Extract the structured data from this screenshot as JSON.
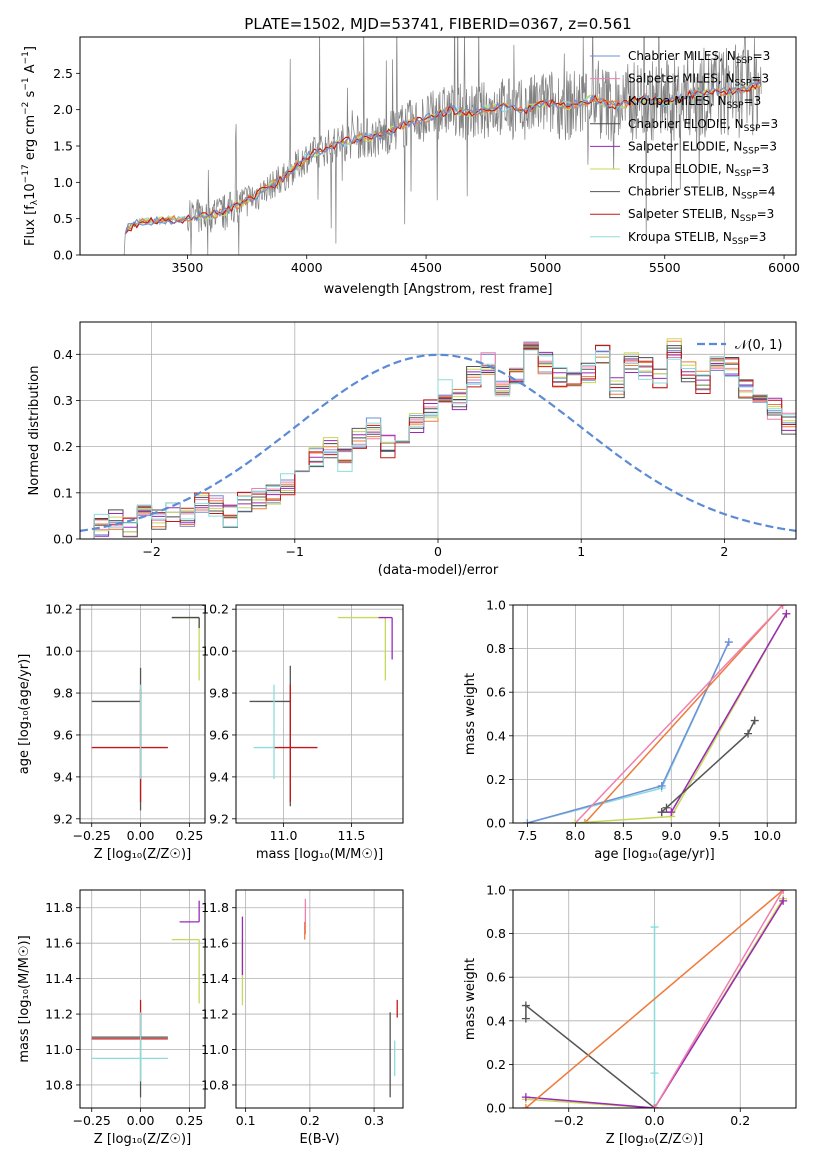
{
  "figure_title": "PLATE=1502, MJD=53741, FIBERID=0367, z=0.561",
  "colors": {
    "chabrier_miles": "#6f8fd8",
    "salpeter_miles": "#f07fb0",
    "kroupa_miles": "#ee7a3c",
    "chabrier_elodie": "#4a4a4a",
    "salpeter_elodie": "#9a28b8",
    "kroupa_elodie": "#c8d85a",
    "chabrier_stelib": "#555555",
    "salpeter_stelib": "#c41818",
    "kroupa_stelib": "#8ddcdc",
    "spectrum": "#808080",
    "normal_curve": "#5b8bd6",
    "grid": "#b0b0b0"
  },
  "chart_data": [
    {
      "id": "spectrum",
      "type": "line",
      "xlabel": "wavelength [Angstrom, rest frame]",
      "ylabel": "Flux [f_λ10^-17 erg cm^-2 s^-1 A^-1]",
      "ylabel_parts": {
        "a": "Flux [f",
        "sub": "λ",
        "b": "10",
        "sup1": "−17",
        "c": " erg cm",
        "sup2": "−2",
        "d": " s",
        "sup3": "−1",
        "e": " A",
        "sup4": "−1",
        "f": "]"
      },
      "xlim": [
        3050,
        6050
      ],
      "ylim": [
        0,
        3.0
      ],
      "xticks": [
        3500,
        4000,
        4500,
        5000,
        5500,
        6000
      ],
      "yticks": [
        0.0,
        0.5,
        1.0,
        1.5,
        2.0,
        2.5
      ],
      "grid": false,
      "legend_position": "top-right",
      "legend": [
        {
          "label": "Chabrier MILES, N",
          "sub": "SSP",
          "eq": "=3",
          "color_key": "chabrier_miles"
        },
        {
          "label": "Salpeter MILES, N",
          "sub": "SSP",
          "eq": "=3",
          "color_key": "salpeter_miles"
        },
        {
          "label": "Kroupa MILES, N",
          "sub": "SSP",
          "eq": "=3",
          "color_key": "kroupa_miles"
        },
        {
          "label": "Chabrier ELODIE, N",
          "sub": "SSP",
          "eq": "=3",
          "color_key": "chabrier_elodie"
        },
        {
          "label": "Salpeter ELODIE, N",
          "sub": "SSP",
          "eq": "=3",
          "color_key": "salpeter_elodie"
        },
        {
          "label": "Kroupa ELODIE, N",
          "sub": "SSP",
          "eq": "=3",
          "color_key": "kroupa_elodie"
        },
        {
          "label": "Chabrier STELIB, N",
          "sub": "SSP",
          "eq": "=4",
          "color_key": "chabrier_stelib"
        },
        {
          "label": "Salpeter STELIB, N",
          "sub": "SSP",
          "eq": "=3",
          "color_key": "salpeter_stelib"
        },
        {
          "label": "Kroupa STELIB, N",
          "sub": "SSP",
          "eq": "=3",
          "color_key": "kroupa_stelib"
        }
      ],
      "series_points": [
        [
          3235,
          0.0
        ],
        [
          3240,
          0.35
        ],
        [
          3300,
          0.45
        ],
        [
          3500,
          0.5
        ],
        [
          3650,
          0.58
        ],
        [
          3800,
          0.85
        ],
        [
          3900,
          1.05
        ],
        [
          4000,
          1.35
        ],
        [
          4100,
          1.5
        ],
        [
          4200,
          1.6
        ],
        [
          4300,
          1.62
        ],
        [
          4400,
          1.78
        ],
        [
          4500,
          1.88
        ],
        [
          4600,
          2.0
        ],
        [
          4700,
          1.95
        ],
        [
          4800,
          2.05
        ],
        [
          4900,
          1.98
        ],
        [
          5000,
          2.1
        ],
        [
          5100,
          2.05
        ],
        [
          5200,
          2.15
        ],
        [
          5300,
          2.05
        ],
        [
          5400,
          2.15
        ],
        [
          5500,
          2.1
        ],
        [
          5600,
          2.2
        ],
        [
          5700,
          2.25
        ],
        [
          5800,
          2.25
        ],
        [
          5900,
          2.35
        ]
      ]
    },
    {
      "id": "residuals",
      "type": "line",
      "xlabel": "(data-model)/error",
      "ylabel": "Normed distribution",
      "xlim": [
        -2.5,
        2.5
      ],
      "ylim": [
        0,
        0.47
      ],
      "xticks": [
        -2,
        -1,
        0,
        1,
        2
      ],
      "yticks": [
        0.0,
        0.1,
        0.2,
        0.3,
        0.4
      ],
      "grid": true,
      "legend_position": "top-right",
      "legend": [
        {
          "label": "𝒩(0, 1)",
          "color_key": "normal_curve"
        }
      ],
      "bin_edges_start": -2.5,
      "bin_width": 0.1,
      "histogram_values": [
        0.02,
        0.03,
        0.04,
        0.03,
        0.05,
        0.04,
        0.06,
        0.05,
        0.08,
        0.07,
        0.05,
        0.08,
        0.09,
        0.1,
        0.12,
        0.15,
        0.18,
        0.2,
        0.17,
        0.22,
        0.24,
        0.2,
        0.22,
        0.25,
        0.28,
        0.32,
        0.3,
        0.35,
        0.38,
        0.33,
        0.36,
        0.42,
        0.38,
        0.35,
        0.34,
        0.36,
        0.4,
        0.33,
        0.38,
        0.37,
        0.35,
        0.41,
        0.36,
        0.34,
        0.38,
        0.37,
        0.33,
        0.3,
        0.28,
        0.25,
        0.22,
        0.2,
        0.18,
        0.15,
        0.17,
        0.12,
        0.1,
        0.13,
        0.1,
        0.08,
        0.09,
        0.07,
        0.06,
        0.08,
        0.05,
        0.05,
        0.04,
        0.06,
        0.04,
        0.05
      ]
    },
    {
      "id": "age_vs_Z",
      "type": "scatter",
      "xlabel": "Z [log₁₀(Z/Z☉)]",
      "ylabel": "age  [log₁₀(age/yr)]",
      "xlim": [
        -0.31,
        0.33
      ],
      "ylim": [
        9.18,
        10.22
      ],
      "xticks": [
        -0.25,
        0.0,
        0.25
      ],
      "xtick_labels": [
        "−0.25",
        "0.00",
        "0.25"
      ],
      "yticks": [
        9.2,
        9.4,
        9.6,
        9.8,
        10.0,
        10.2
      ],
      "grid": true,
      "errorbars": [
        {
          "x": 0.0,
          "y": 9.76,
          "xerr": [
            0.25,
            0.0
          ],
          "yerr": [
            0.52,
            0.16
          ],
          "color_key": "chabrier_stelib"
        },
        {
          "x": 0.0,
          "y": 9.54,
          "xerr": [
            0.25,
            0.14
          ],
          "yerr": [
            0.26,
            0.28
          ],
          "color_key": "salpeter_stelib"
        },
        {
          "x": 0.0,
          "y": 9.54,
          "xerr": [
            0.0,
            0.0
          ],
          "yerr": [
            0.15,
            0.3
          ],
          "color_key": "kroupa_stelib"
        },
        {
          "x": 0.3,
          "y": 10.16,
          "xerr": [
            0.14,
            0.0
          ],
          "yerr": [
            0.3,
            0.0
          ],
          "color_key": "kroupa_elodie"
        },
        {
          "x": 0.3,
          "y": 10.16,
          "xerr": [
            0.14,
            0.0
          ],
          "yerr": [
            0.05,
            0.0
          ],
          "color_key": "chabrier_elodie"
        }
      ]
    },
    {
      "id": "age_vs_mass",
      "type": "scatter",
      "xlabel": "mass [log₁₀(M/M☉)]",
      "ylabel": "",
      "xlim": [
        10.65,
        11.88
      ],
      "ylim": [
        9.18,
        10.22
      ],
      "xticks": [
        11.0,
        11.5
      ],
      "yticks": [
        9.2,
        9.4,
        9.6,
        9.8,
        10.0,
        10.2
      ],
      "grid": true,
      "errorbars": [
        {
          "x": 11.05,
          "y": 9.76,
          "xerr": [
            0.3,
            0.0
          ],
          "yerr": [
            0.5,
            0.17
          ],
          "color_key": "chabrier_stelib"
        },
        {
          "x": 11.05,
          "y": 9.54,
          "xerr": [
            0.12,
            0.2
          ],
          "yerr": [
            0.26,
            0.3
          ],
          "color_key": "salpeter_stelib"
        },
        {
          "x": 10.93,
          "y": 9.54,
          "xerr": [
            0.15,
            0.0
          ],
          "yerr": [
            0.15,
            0.3
          ],
          "color_key": "kroupa_stelib"
        },
        {
          "x": 11.75,
          "y": 10.16,
          "xerr": [
            0.35,
            0.0
          ],
          "yerr": [
            0.3,
            0.0
          ],
          "color_key": "kroupa_elodie"
        },
        {
          "x": 11.8,
          "y": 10.16,
          "xerr": [
            0.1,
            0.0
          ],
          "yerr": [
            0.2,
            0.0
          ],
          "color_key": "salpeter_elodie"
        }
      ]
    },
    {
      "id": "massweight_vs_age",
      "type": "line",
      "xlabel": "age  [log₁₀(age/yr)]",
      "ylabel": "mass weight",
      "xlim": [
        7.35,
        10.3
      ],
      "ylim": [
        0,
        1.0
      ],
      "xticks": [
        7.5,
        8.0,
        8.5,
        9.0,
        9.5,
        10.0
      ],
      "yticks": [
        0.0,
        0.2,
        0.4,
        0.6,
        0.8,
        1.0
      ],
      "grid": true,
      "series": [
        {
          "x": [
            7.5,
            8.9,
            9.6
          ],
          "y": [
            0.0,
            0.16,
            0.83
          ],
          "color_key": "kroupa_stelib"
        },
        {
          "x": [
            7.5,
            8.9,
            9.6
          ],
          "y": [
            0.0,
            0.17,
            0.83
          ],
          "color_key": "chabrier_miles"
        },
        {
          "x": [
            8.1,
            10.16
          ],
          "y": [
            0.0,
            1.0
          ],
          "color_key": "kroupa_miles"
        },
        {
          "x": [
            8.0,
            10.16
          ],
          "y": [
            0.0,
            1.0
          ],
          "color_key": "salpeter_miles"
        },
        {
          "x": [
            8.0,
            9.0,
            10.2
          ],
          "y": [
            0.0,
            0.03,
            0.96
          ],
          "color_key": "kroupa_elodie"
        },
        {
          "x": [
            8.9,
            9.0,
            10.2
          ],
          "y": [
            0.05,
            0.05,
            0.96
          ],
          "color_key": "salpeter_elodie"
        },
        {
          "x": [
            8.9,
            8.95,
            9.8,
            9.87
          ],
          "y": [
            0.05,
            0.07,
            0.41,
            0.47
          ],
          "color_key": "chabrier_stelib"
        }
      ]
    },
    {
      "id": "mass_vs_Z",
      "type": "scatter",
      "xlabel": "Z [log₁₀(Z/Z☉)]",
      "ylabel": "mass [log₁₀(M/M☉)]",
      "xlim": [
        -0.31,
        0.33
      ],
      "ylim": [
        10.67,
        11.9
      ],
      "xticks": [
        -0.25,
        0.0,
        0.25
      ],
      "xtick_labels": [
        "−0.25",
        "0.00",
        "0.25"
      ],
      "yticks": [
        10.8,
        11.0,
        11.2,
        11.4,
        11.6,
        11.8
      ],
      "grid": true,
      "errorbars": [
        {
          "x": 0.0,
          "y": 11.07,
          "xerr": [
            0.25,
            0.14
          ],
          "yerr": [
            0.34,
            0.14
          ],
          "color_key": "chabrier_stelib"
        },
        {
          "x": 0.0,
          "y": 11.06,
          "xerr": [
            0.25,
            0.14
          ],
          "yerr": [
            0.0,
            0.22
          ],
          "color_key": "salpeter_stelib"
        },
        {
          "x": 0.0,
          "y": 10.95,
          "xerr": [
            0.25,
            0.14
          ],
          "yerr": [
            0.13,
            0.26
          ],
          "color_key": "kroupa_stelib"
        },
        {
          "x": 0.3,
          "y": 11.72,
          "xerr": [
            0.1,
            0.0
          ],
          "yerr": [
            0.0,
            0.12
          ],
          "color_key": "salpeter_elodie"
        },
        {
          "x": 0.3,
          "y": 11.62,
          "xerr": [
            0.14,
            0.0
          ],
          "yerr": [
            0.36,
            0.0
          ],
          "color_key": "kroupa_elodie"
        }
      ]
    },
    {
      "id": "mass_vs_ebv",
      "type": "scatter",
      "xlabel": "E(B-V)",
      "ylabel": "",
      "xlim": [
        0.085,
        0.345
      ],
      "ylim": [
        10.67,
        11.9
      ],
      "xticks": [
        0.1,
        0.2,
        0.3
      ],
      "yticks": [
        10.8,
        11.0,
        11.2,
        11.4,
        11.6,
        11.8
      ],
      "grid": true,
      "vlines": [
        {
          "x": 0.095,
          "y0": 11.25,
          "y1": 11.62,
          "color_key": "kroupa_elodie"
        },
        {
          "x": 0.095,
          "y0": 11.42,
          "y1": 11.75,
          "color_key": "salpeter_elodie"
        },
        {
          "x": 0.193,
          "y0": 11.65,
          "y1": 11.85,
          "color_key": "salpeter_miles"
        },
        {
          "x": 0.192,
          "y0": 11.62,
          "y1": 11.72,
          "color_key": "kroupa_miles"
        },
        {
          "x": 0.325,
          "y0": 10.73,
          "y1": 11.21,
          "color_key": "chabrier_stelib"
        },
        {
          "x": 0.332,
          "y0": 10.85,
          "y1": 11.05,
          "color_key": "kroupa_stelib"
        },
        {
          "x": 0.336,
          "y0": 11.18,
          "y1": 11.28,
          "color_key": "salpeter_stelib"
        }
      ]
    },
    {
      "id": "massweight_vs_Z",
      "type": "line",
      "xlabel": "Z [log₁₀(Z/Z☉)]",
      "ylabel": "mass weight",
      "xlim": [
        -0.33,
        0.33
      ],
      "ylim": [
        0,
        1.0
      ],
      "xticks": [
        -0.2,
        0.0,
        0.2
      ],
      "xtick_labels": [
        "−0.2",
        "0.0",
        "0.2"
      ],
      "yticks": [
        0.0,
        0.2,
        0.4,
        0.6,
        0.8,
        1.0
      ],
      "grid": true,
      "series": [
        {
          "x": [
            0.0,
            0.0,
            0.0
          ],
          "y": [
            0.0,
            0.16,
            0.83
          ],
          "color_key": "kroupa_stelib"
        },
        {
          "x": [
            -0.3,
            -0.3,
            0.0
          ],
          "y": [
            0.41,
            0.47,
            0.0
          ],
          "color_key": "chabrier_stelib"
        },
        {
          "x": [
            -0.3,
            0.0,
            0.3
          ],
          "y": [
            0.04,
            0.0,
            0.96
          ],
          "color_key": "kroupa_elodie"
        },
        {
          "x": [
            -0.3,
            0.0,
            0.3
          ],
          "y": [
            0.05,
            0.0,
            0.95
          ],
          "color_key": "salpeter_elodie"
        },
        {
          "x": [
            -0.3,
            0.3
          ],
          "y": [
            0.0,
            1.0
          ],
          "color_key": "kroupa_miles"
        },
        {
          "x": [
            0.0,
            0.3
          ],
          "y": [
            0.0,
            1.0
          ],
          "color_key": "salpeter_miles"
        }
      ]
    }
  ]
}
